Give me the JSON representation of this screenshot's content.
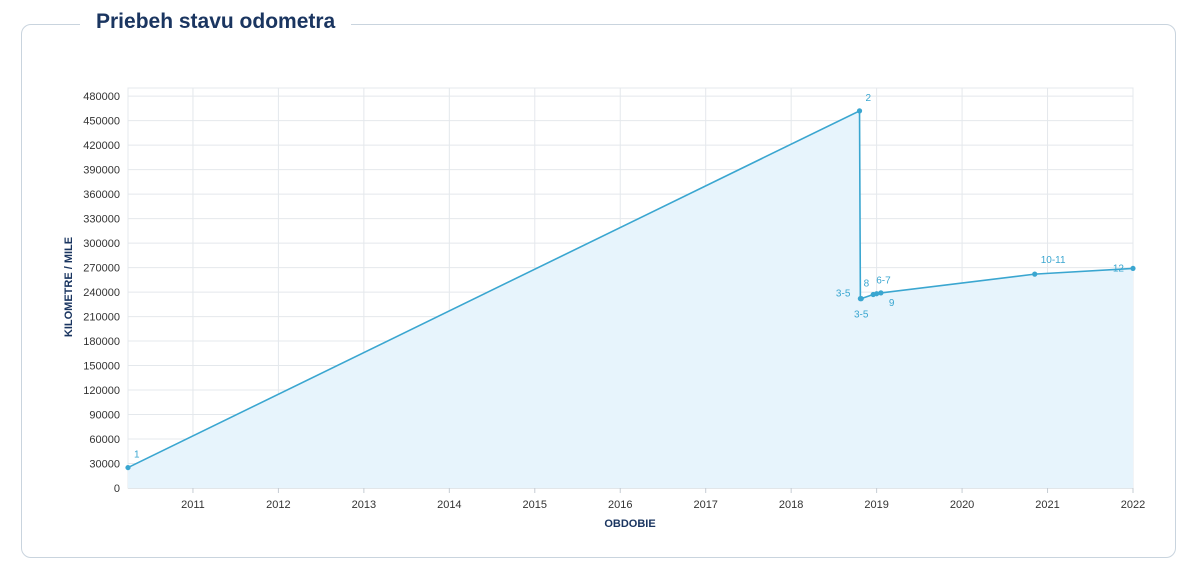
{
  "header": {
    "title": "Priebeh stavu odometra"
  },
  "chart_data": {
    "type": "area",
    "title": "Priebeh stavu odometra",
    "xlabel": "OBDOBIE",
    "ylabel": "KILOMETRE / MILE",
    "x_ticks": [
      "2011",
      "2012",
      "2013",
      "2014",
      "2015",
      "2016",
      "2017",
      "2018",
      "2019",
      "2020",
      "2021",
      "2022"
    ],
    "y_ticks": [
      "0",
      "30000",
      "60000",
      "90000",
      "120000",
      "150000",
      "180000",
      "210000",
      "240000",
      "270000",
      "300000",
      "330000",
      "360000",
      "390000",
      "420000",
      "450000",
      "480000"
    ],
    "xlim": [
      2010.24,
      2022.0
    ],
    "ylim": [
      0,
      490000
    ],
    "grid": true,
    "colors": {
      "line": "#3aa6d0",
      "fill": "#e7f4fc",
      "grid": "#e4e8ec",
      "title": "#1a3560"
    },
    "series": [
      {
        "points": [
          {
            "x": 2010.24,
            "y": 25000,
            "label": "1"
          },
          {
            "x": 2018.8,
            "y": 462000,
            "label": "2"
          },
          {
            "x": 2018.81,
            "y": 232000,
            "label": "3-5"
          },
          {
            "x": 2018.82,
            "y": 232000,
            "label": "3-5"
          },
          {
            "x": 2018.96,
            "y": 237000,
            "label": "6-7"
          },
          {
            "x": 2019.0,
            "y": 238000,
            "label": "8"
          },
          {
            "x": 2019.05,
            "y": 239000,
            "label": "9"
          },
          {
            "x": 2020.85,
            "y": 262000,
            "label": "10-11"
          },
          {
            "x": 2022.0,
            "y": 269000,
            "label": "12"
          }
        ]
      }
    ]
  }
}
